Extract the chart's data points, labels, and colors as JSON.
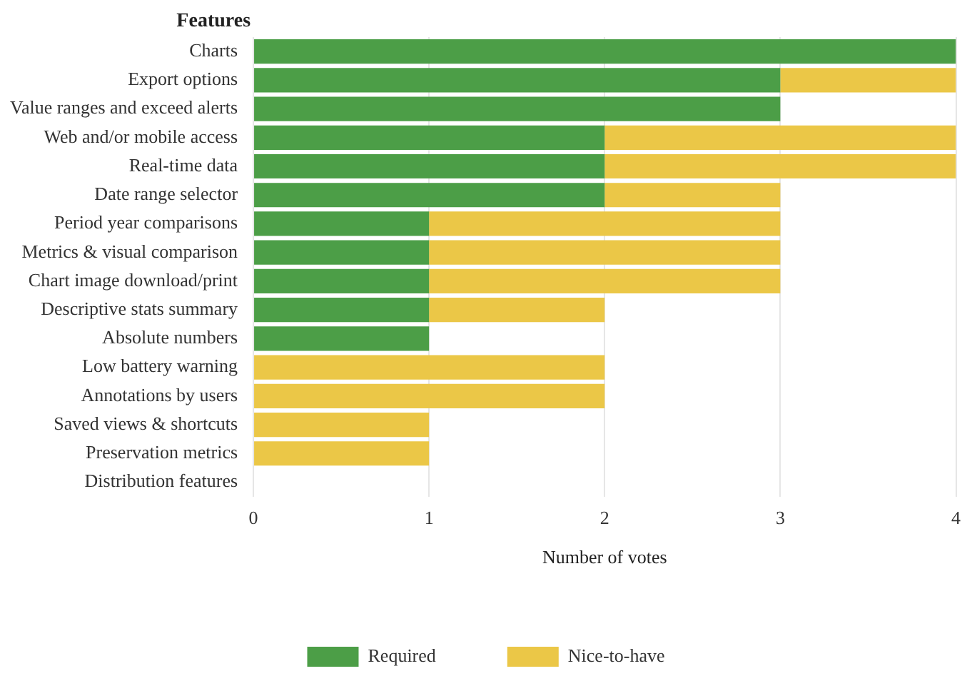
{
  "chart_data": {
    "type": "bar",
    "orientation": "horizontal",
    "stacked": true,
    "ylabel": "Features",
    "xlabel": "Number of votes",
    "categories": [
      "Charts",
      "Export options",
      "Value ranges and exceed alerts",
      "Web and/or mobile access",
      "Real-time data",
      "Date range selector",
      "Period year comparisons",
      "Metrics & visual comparison",
      "Chart image download/print",
      "Descriptive stats summary",
      "Absolute numbers",
      "Low battery warning",
      "Annotations by users",
      "Saved views & shortcuts",
      "Preservation metrics",
      "Distribution features"
    ],
    "series": [
      {
        "name": "Required",
        "color": "#4c9e47",
        "values": [
          4,
          3,
          3,
          2,
          2,
          2,
          1,
          1,
          1,
          1,
          1,
          0,
          0,
          0,
          0,
          0
        ]
      },
      {
        "name": "Nice-to-have",
        "color": "#ebc747",
        "values": [
          0,
          1,
          0,
          2,
          2,
          1,
          2,
          2,
          2,
          1,
          0,
          2,
          2,
          1,
          1,
          0
        ]
      }
    ],
    "xlim": [
      0,
      4
    ],
    "xticks": [
      0,
      1,
      2,
      3,
      4
    ],
    "grid": "x",
    "legend": "bottom"
  }
}
